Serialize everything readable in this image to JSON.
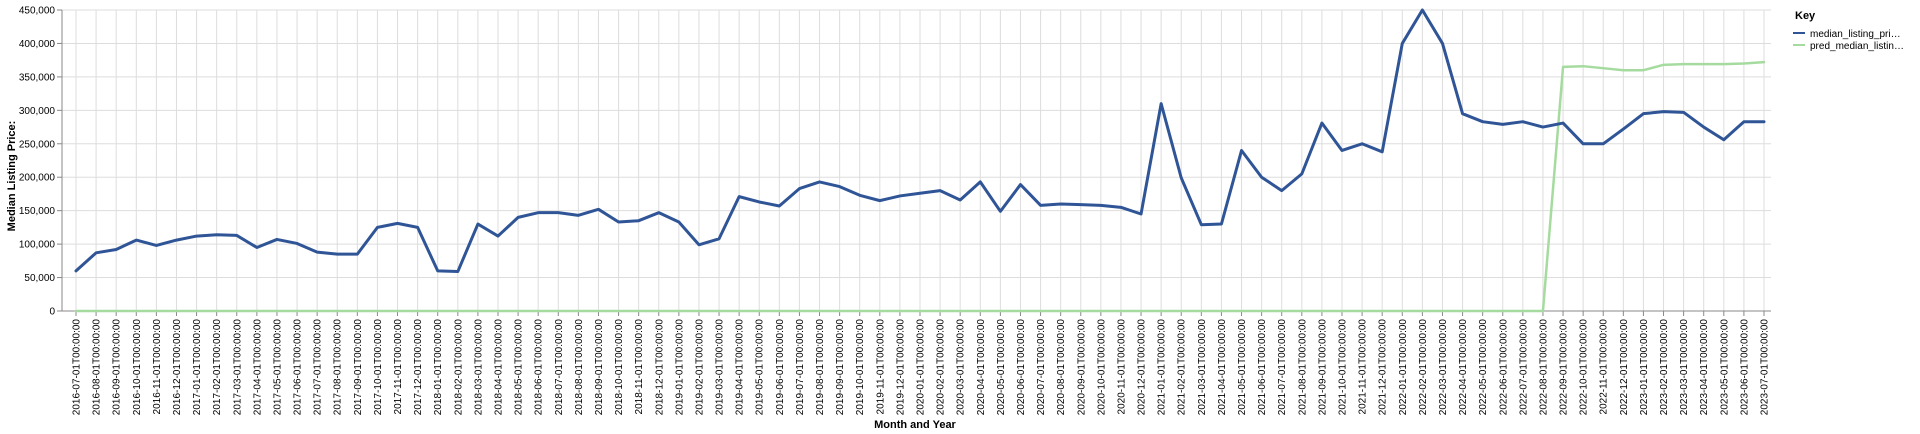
{
  "chart_data": {
    "type": "line",
    "title": "",
    "xlabel": "Month and Year",
    "ylabel": "Median Listing Price:",
    "ylim": [
      0,
      450000
    ],
    "yticks": [
      0,
      50000,
      100000,
      150000,
      200000,
      250000,
      300000,
      350000,
      400000,
      450000
    ],
    "ytick_labels": [
      "0",
      "50,000",
      "100,000",
      "150,000",
      "200,000",
      "250,000",
      "300,000",
      "350,000",
      "400,000",
      "450,000"
    ],
    "grid": true,
    "legend": {
      "title": "Key",
      "position": "top-right",
      "entries": [
        {
          "label": "median_listing_pri…",
          "color": "#2f5597"
        },
        {
          "label": "pred_median_listin…",
          "color": "#a6dba0"
        }
      ]
    },
    "x": [
      "2016-07-01T00:00:00",
      "2016-08-01T00:00:00",
      "2016-09-01T00:00:00",
      "2016-10-01T00:00:00",
      "2016-11-01T00:00:00",
      "2016-12-01T00:00:00",
      "2017-01-01T00:00:00",
      "2017-02-01T00:00:00",
      "2017-03-01T00:00:00",
      "2017-04-01T00:00:00",
      "2017-05-01T00:00:00",
      "2017-06-01T00:00:00",
      "2017-07-01T00:00:00",
      "2017-08-01T00:00:00",
      "2017-09-01T00:00:00",
      "2017-10-01T00:00:00",
      "2017-11-01T00:00:00",
      "2017-12-01T00:00:00",
      "2018-01-01T00:00:00",
      "2018-02-01T00:00:00",
      "2018-03-01T00:00:00",
      "2018-04-01T00:00:00",
      "2018-05-01T00:00:00",
      "2018-06-01T00:00:00",
      "2018-07-01T00:00:00",
      "2018-08-01T00:00:00",
      "2018-09-01T00:00:00",
      "2018-10-01T00:00:00",
      "2018-11-01T00:00:00",
      "2018-12-01T00:00:00",
      "2019-01-01T00:00:00",
      "2019-02-01T00:00:00",
      "2019-03-01T00:00:00",
      "2019-04-01T00:00:00",
      "2019-05-01T00:00:00",
      "2019-06-01T00:00:00",
      "2019-07-01T00:00:00",
      "2019-08-01T00:00:00",
      "2019-09-01T00:00:00",
      "2019-10-01T00:00:00",
      "2019-11-01T00:00:00",
      "2019-12-01T00:00:00",
      "2020-01-01T00:00:00",
      "2020-02-01T00:00:00",
      "2020-03-01T00:00:00",
      "2020-04-01T00:00:00",
      "2020-05-01T00:00:00",
      "2020-06-01T00:00:00",
      "2020-07-01T00:00:00",
      "2020-08-01T00:00:00",
      "2020-09-01T00:00:00",
      "2020-10-01T00:00:00",
      "2020-11-01T00:00:00",
      "2020-12-01T00:00:00",
      "2021-01-01T00:00:00",
      "2021-02-01T00:00:00",
      "2021-03-01T00:00:00",
      "2021-04-01T00:00:00",
      "2021-05-01T00:00:00",
      "2021-06-01T00:00:00",
      "2021-07-01T00:00:00",
      "2021-08-01T00:00:00",
      "2021-09-01T00:00:00",
      "2021-10-01T00:00:00",
      "2021-11-01T00:00:00",
      "2021-12-01T00:00:00",
      "2022-01-01T00:00:00",
      "2022-02-01T00:00:00",
      "2022-03-01T00:00:00",
      "2022-04-01T00:00:00",
      "2022-05-01T00:00:00",
      "2022-06-01T00:00:00",
      "2022-07-01T00:00:00",
      "2022-08-01T00:00:00",
      "2022-09-01T00:00:00",
      "2022-10-01T00:00:00",
      "2022-11-01T00:00:00",
      "2022-12-01T00:00:00",
      "2023-01-01T00:00:00",
      "2023-02-01T00:00:00",
      "2023-03-01T00:00:00",
      "2023-04-01T00:00:00",
      "2023-05-01T00:00:00",
      "2023-06-01T00:00:00",
      "2023-07-01T00:00:00"
    ],
    "series": [
      {
        "name": "median_listing_pri…",
        "color": "#2f5597",
        "values": [
          60000,
          87000,
          92000,
          106000,
          98000,
          106000,
          112000,
          114000,
          113000,
          95000,
          107000,
          101000,
          88000,
          85000,
          85000,
          125000,
          131000,
          125000,
          60000,
          59000,
          130000,
          112000,
          140000,
          147000,
          147000,
          143000,
          152000,
          133000,
          135000,
          147000,
          133000,
          99000,
          108000,
          171000,
          163000,
          157000,
          183000,
          193000,
          186000,
          173000,
          165000,
          172000,
          176000,
          180000,
          166000,
          193000,
          149000,
          189000,
          158000,
          160000,
          159000,
          158000,
          155000,
          145000,
          310000,
          199000,
          129000,
          130000,
          240000,
          200000,
          180000,
          205000,
          281000,
          240000,
          250000,
          238000,
          400000,
          450000,
          400000,
          295000,
          283000,
          279000,
          283000,
          275000,
          281000,
          250000,
          250000,
          272000,
          295000,
          298000,
          297000,
          275000,
          256000,
          283000,
          283000
        ]
      },
      {
        "name": "pred_median_listin…",
        "color": "#a6dba0",
        "values": [
          0,
          0,
          0,
          0,
          0,
          0,
          0,
          0,
          0,
          0,
          0,
          0,
          0,
          0,
          0,
          0,
          0,
          0,
          0,
          0,
          0,
          0,
          0,
          0,
          0,
          0,
          0,
          0,
          0,
          0,
          0,
          0,
          0,
          0,
          0,
          0,
          0,
          0,
          0,
          0,
          0,
          0,
          0,
          0,
          0,
          0,
          0,
          0,
          0,
          0,
          0,
          0,
          0,
          0,
          0,
          0,
          0,
          0,
          0,
          0,
          0,
          0,
          0,
          0,
          0,
          0,
          0,
          0,
          0,
          0,
          0,
          0,
          0,
          0,
          365000,
          366000,
          363000,
          360000,
          360000,
          368000,
          369000,
          369000,
          369000,
          370000,
          372000
        ]
      }
    ]
  }
}
